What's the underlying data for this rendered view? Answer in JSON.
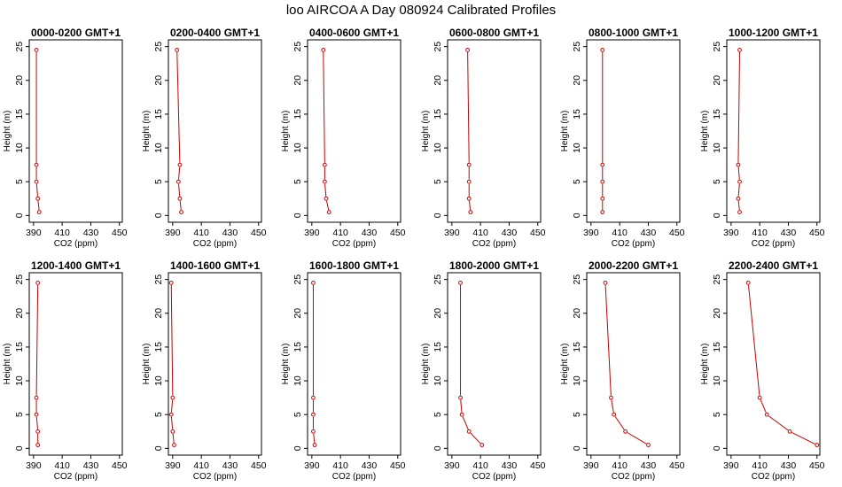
{
  "title": "loo AIRCOA A  Day 080924  Calibrated Profiles",
  "colors": {
    "series": "#cc0000",
    "frame": "#000000",
    "background": "#ffffff"
  },
  "axes": {
    "xlabel": "CO2 (ppm)",
    "ylabel": "Height (m)",
    "xlim": [
      387,
      452
    ],
    "ylim": [
      -1,
      26
    ],
    "xticks": [
      390,
      410,
      430,
      450
    ],
    "yticks": [
      0,
      5,
      10,
      15,
      20,
      25
    ]
  },
  "chart_data": [
    {
      "type": "line",
      "title": "0000-0200 GMT+1",
      "xlabel": "CO2 (ppm)",
      "ylabel": "Height (m)",
      "series": [
        {
          "x": [
            392,
            392,
            392,
            393,
            394
          ],
          "y": [
            24.5,
            7.5,
            5,
            2.5,
            0.5
          ]
        }
      ]
    },
    {
      "type": "line",
      "title": "0200-0400 GMT+1",
      "xlabel": "CO2 (ppm)",
      "ylabel": "Height (m)",
      "series": [
        {
          "x": [
            393,
            395,
            394,
            395,
            396
          ],
          "y": [
            24.5,
            7.5,
            5,
            2.5,
            0.5
          ]
        }
      ]
    },
    {
      "type": "line",
      "title": "0400-0600 GMT+1",
      "xlabel": "CO2 (ppm)",
      "ylabel": "Height (m)",
      "series": [
        {
          "x": [
            398,
            399,
            399,
            400,
            402
          ],
          "y": [
            24.5,
            7.5,
            5,
            2.5,
            0.5
          ]
        }
      ]
    },
    {
      "type": "line",
      "title": "0600-0800 GMT+1",
      "xlabel": "CO2 (ppm)",
      "ylabel": "Height (m)",
      "series": [
        {
          "x": [
            401,
            402,
            402,
            402,
            403
          ],
          "y": [
            24.5,
            7.5,
            5,
            2.5,
            0.5
          ]
        }
      ]
    },
    {
      "type": "line",
      "title": "0800-1000 GMT+1",
      "xlabel": "CO2 (ppm)",
      "ylabel": "Height (m)",
      "series": [
        {
          "x": [
            398,
            398,
            398,
            398,
            398
          ],
          "y": [
            24.5,
            7.5,
            5,
            2.5,
            0.5
          ]
        }
      ]
    },
    {
      "type": "line",
      "title": "1000-1200 GMT+1",
      "xlabel": "CO2 (ppm)",
      "ylabel": "Height (m)",
      "series": [
        {
          "x": [
            396,
            395,
            396,
            395,
            396
          ],
          "y": [
            24.5,
            7.5,
            5,
            2.5,
            0.5
          ]
        }
      ]
    },
    {
      "type": "line",
      "title": "1200-1400 GMT+1",
      "xlabel": "CO2 (ppm)",
      "ylabel": "Height (m)",
      "series": [
        {
          "x": [
            393,
            392,
            392,
            393,
            393
          ],
          "y": [
            24.5,
            7.5,
            5,
            2.5,
            0.5
          ]
        }
      ]
    },
    {
      "type": "line",
      "title": "1400-1600 GMT+1",
      "xlabel": "CO2 (ppm)",
      "ylabel": "Height (m)",
      "series": [
        {
          "x": [
            389,
            390,
            389,
            390,
            391
          ],
          "y": [
            24.5,
            7.5,
            5,
            2.5,
            0.5
          ]
        }
      ]
    },
    {
      "type": "line",
      "title": "1600-1800 GMT+1",
      "xlabel": "CO2 (ppm)",
      "ylabel": "Height (m)",
      "series": [
        {
          "x": [
            391,
            391,
            391,
            391,
            392
          ],
          "y": [
            24.5,
            7.5,
            5,
            2.5,
            0.5
          ]
        }
      ]
    },
    {
      "type": "line",
      "title": "1800-2000 GMT+1",
      "xlabel": "CO2 (ppm)",
      "ylabel": "Height (m)",
      "series": [
        {
          "x": [
            396,
            396,
            397,
            402,
            411
          ],
          "y": [
            24.5,
            7.5,
            5,
            2.5,
            0.5
          ]
        }
      ]
    },
    {
      "type": "line",
      "title": "2000-2200 GMT+1",
      "xlabel": "CO2 (ppm)",
      "ylabel": "Height (m)",
      "series": [
        {
          "x": [
            400,
            404,
            406,
            414,
            430
          ],
          "y": [
            24.5,
            7.5,
            5,
            2.5,
            0.5
          ]
        }
      ]
    },
    {
      "type": "line",
      "title": "2200-2400 GMT+1",
      "xlabel": "CO2 (ppm)",
      "ylabel": "Height (m)",
      "series": [
        {
          "x": [
            402,
            410,
            415,
            431,
            450
          ],
          "y": [
            24.5,
            7.5,
            5,
            2.5,
            0.5
          ]
        }
      ]
    }
  ]
}
